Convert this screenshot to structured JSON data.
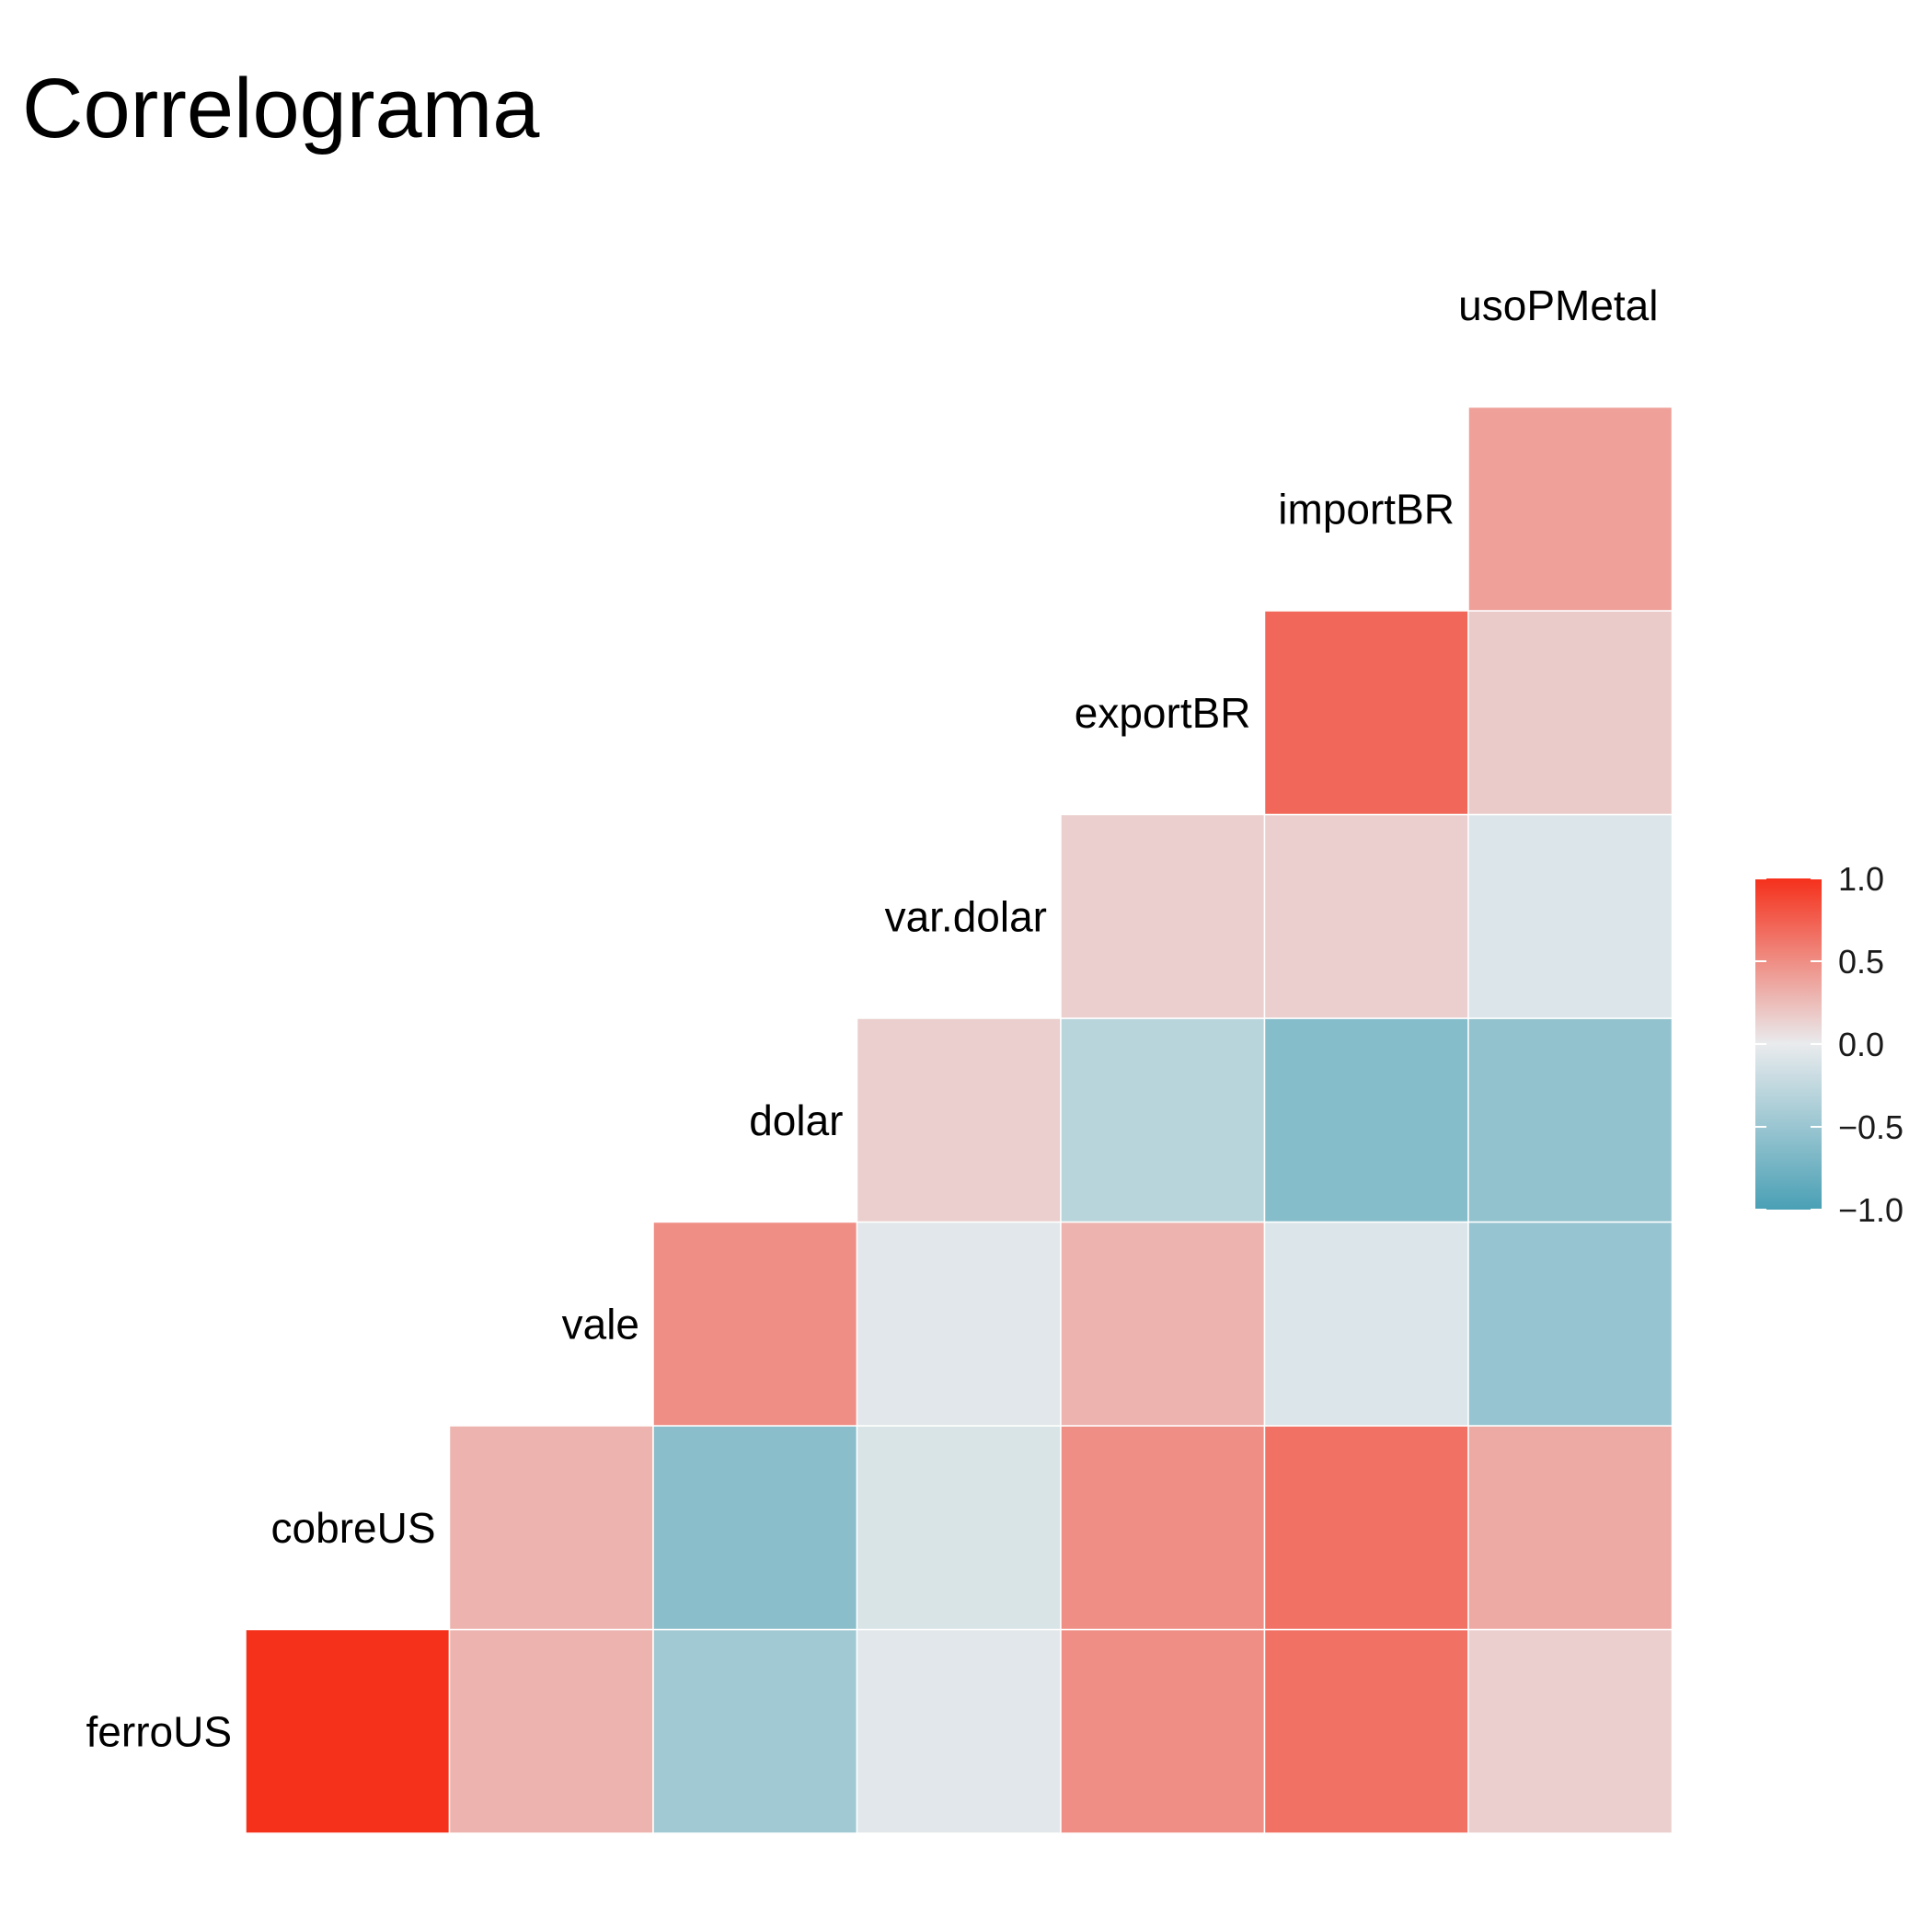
{
  "chart_data": {
    "type": "heatmap",
    "title": "Correlograma",
    "variables": [
      "ferroUS",
      "cobreUS",
      "vale",
      "dolar",
      "var.dolar",
      "exportBR",
      "importBR",
      "usoPMetal"
    ],
    "matrix_rows": [
      {
        "row": "ferroUS",
        "values": [
          1.0,
          0.3,
          -0.45,
          -0.05,
          0.5,
          0.65,
          0.15
        ]
      },
      {
        "row": "cobreUS",
        "values": [
          0.3,
          -0.6,
          -0.1,
          0.5,
          0.65,
          0.35
        ]
      },
      {
        "row": "vale",
        "values": [
          0.5,
          -0.05,
          0.3,
          -0.08,
          -0.52
        ]
      },
      {
        "row": "dolar",
        "values": [
          0.15,
          -0.3,
          -0.62,
          -0.55
        ]
      },
      {
        "row": "var.dolar",
        "values": [
          0.15,
          0.15,
          -0.08
        ]
      },
      {
        "row": "exportBR",
        "values": [
          0.7,
          0.17
        ]
      },
      {
        "row": "importBR",
        "values": [
          0.4
        ]
      }
    ],
    "legend": {
      "ticks": [
        "1.0",
        "0.5",
        "0.0",
        "−0.5",
        "−1.0"
      ],
      "range": [
        -1,
        1
      ],
      "colors": {
        "low": "#4aa0b5",
        "mid": "#e9ebed",
        "high": "#f5301b"
      },
      "placement": "right"
    }
  }
}
